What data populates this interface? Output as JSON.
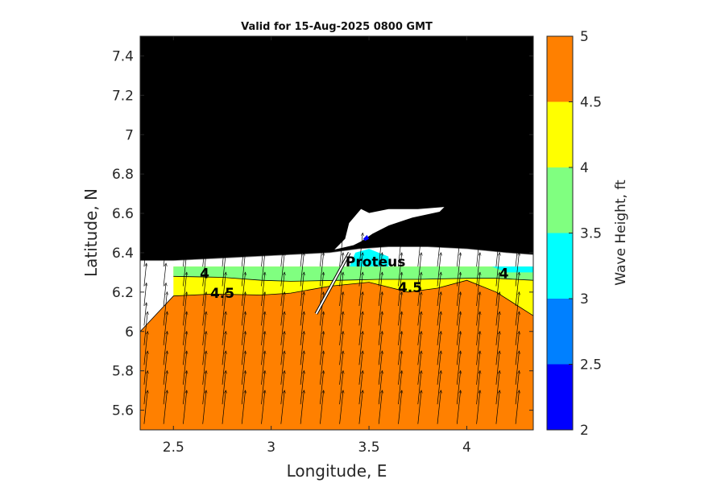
{
  "chart_data": {
    "type": "contour",
    "title": "Valid for 15-Aug-2025 0800 GMT",
    "xlabel": "Longitude, E",
    "ylabel": "Latitude, N",
    "xlim": [
      2.33,
      4.34
    ],
    "ylim": [
      5.5,
      7.5
    ],
    "xticks": [
      2.5,
      3,
      3.5,
      4
    ],
    "xtick_labels": [
      "2.5",
      "3",
      "3.5",
      "4"
    ],
    "yticks": [
      5.6,
      5.8,
      6,
      6.2,
      6.4,
      6.6,
      6.8,
      7,
      7.2,
      7.4
    ],
    "ytick_labels": [
      "5.6",
      "5.8",
      "6",
      "6.2",
      "6.4",
      "6.6",
      "6.8",
      "7",
      "7.2",
      "7.4"
    ],
    "colorbar": {
      "label": "Wave Height, ft",
      "levels": [
        2,
        2.5,
        3,
        3.5,
        4,
        4.5,
        5
      ],
      "tick_labels": [
        "2",
        "2.5",
        "3",
        "3.5",
        "4",
        "4.5",
        "5"
      ],
      "colors": [
        "#0000ff",
        "#0080ff",
        "#00ffff",
        "#80ff80",
        "#ffff00",
        "#ff8000"
      ]
    },
    "land_color": "#000000",
    "contour_labels": [
      {
        "text": "4",
        "lon": 2.66,
        "lat": 6.27
      },
      {
        "text": "4.5",
        "lon": 2.75,
        "lat": 6.17
      },
      {
        "text": "4.5",
        "lon": 3.71,
        "lat": 6.2
      },
      {
        "text": "4",
        "lon": 4.19,
        "lat": 6.27
      }
    ],
    "location": {
      "name": "Proteus",
      "label_lon": 3.38,
      "label_lat": 6.33,
      "line": [
        [
          3.23,
          6.09
        ],
        [
          3.4,
          6.4
        ]
      ]
    },
    "wave_direction": "arrows pointing north-northeast",
    "boundaries": {
      "coast": [
        [
          2.33,
          6.36
        ],
        [
          2.5,
          6.36
        ],
        [
          2.7,
          6.37
        ],
        [
          2.9,
          6.38
        ],
        [
          3.1,
          6.39
        ],
        [
          3.3,
          6.4
        ],
        [
          3.45,
          6.42
        ],
        [
          3.6,
          6.43
        ],
        [
          3.8,
          6.43
        ],
        [
          4.0,
          6.42
        ],
        [
          4.2,
          6.4
        ],
        [
          4.34,
          6.39
        ]
      ],
      "data_top_lat": 6.33,
      "contour_3_5": [
        [
          2.5,
          6.3
        ],
        [
          4.34,
          6.3
        ]
      ],
      "contour_4": [
        [
          2.5,
          6.28
        ],
        [
          2.75,
          6.275
        ],
        [
          2.95,
          6.26
        ],
        [
          3.1,
          6.255
        ],
        [
          3.35,
          6.26
        ],
        [
          3.55,
          6.265
        ],
        [
          3.75,
          6.265
        ],
        [
          4.0,
          6.27
        ],
        [
          4.15,
          6.27
        ],
        [
          4.34,
          6.26
        ]
      ],
      "contour_4_5": [
        [
          2.33,
          6.0
        ],
        [
          2.5,
          6.18
        ],
        [
          2.7,
          6.19
        ],
        [
          2.95,
          6.185
        ],
        [
          3.1,
          6.195
        ],
        [
          3.3,
          6.23
        ],
        [
          3.5,
          6.25
        ],
        [
          3.7,
          6.2
        ],
        [
          3.85,
          6.22
        ],
        [
          4.0,
          6.26
        ],
        [
          4.15,
          6.2
        ],
        [
          4.34,
          6.08
        ]
      ]
    }
  }
}
